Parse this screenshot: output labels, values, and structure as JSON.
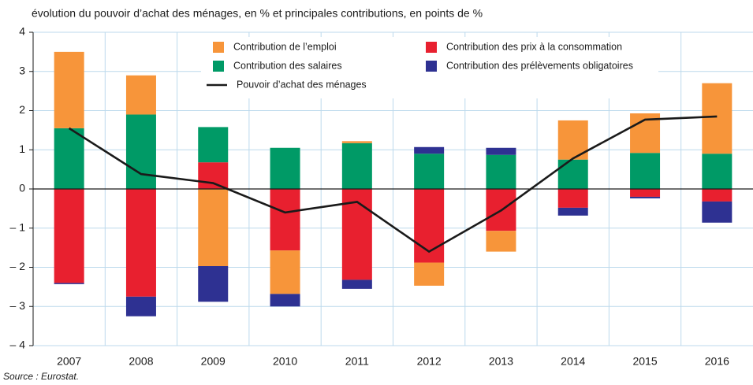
{
  "chart_data": {
    "type": "bar",
    "stacked": true,
    "title": "évolution du pouvoir d’achat des ménages, en % et principales contributions, en points de %",
    "source": "Source : Eurostat.",
    "categories": [
      "2007",
      "2008",
      "2009",
      "2010",
      "2011",
      "2012",
      "2013",
      "2014",
      "2015",
      "2016"
    ],
    "series": [
      {
        "name": "Contribution des prix à la consommation",
        "color": "#e8202f",
        "values": [
          -2.4,
          -2.75,
          0.68,
          -1.57,
          -2.32,
          -1.88,
          -1.07,
          -0.48,
          -0.2,
          -0.32
        ]
      },
      {
        "name": "Contribution des salaires",
        "color": "#009a66",
        "values": [
          1.55,
          1.9,
          0.9,
          1.05,
          1.17,
          0.9,
          0.87,
          0.75,
          0.92,
          0.9
        ]
      },
      {
        "name": "Contribution de l’emploi",
        "color": "#f7953a",
        "values": [
          1.95,
          1.0,
          -1.97,
          -1.11,
          0.05,
          -0.59,
          -0.53,
          1.0,
          1.01,
          1.8
        ]
      },
      {
        "name": "Contribution des prélèvements obligatoires",
        "color": "#2e3192",
        "values": [
          -0.03,
          -0.5,
          -0.91,
          -0.32,
          -0.23,
          0.17,
          0.18,
          -0.2,
          -0.04,
          -0.54
        ]
      }
    ],
    "line": {
      "name": "Pouvoir d’achat des ménages",
      "color": "#1a1a1a",
      "values": [
        1.55,
        0.38,
        0.15,
        -0.6,
        -0.33,
        -1.6,
        -0.55,
        0.78,
        1.77,
        1.85
      ]
    },
    "ylim": [
      -4,
      4
    ],
    "yticks": [
      {
        "value": -4,
        "label": "– 4"
      },
      {
        "value": -3,
        "label": "– 3"
      },
      {
        "value": -2,
        "label": "– 2"
      },
      {
        "value": -1,
        "label": "– 1"
      },
      0,
      1,
      2,
      3,
      4
    ],
    "grid": true
  }
}
